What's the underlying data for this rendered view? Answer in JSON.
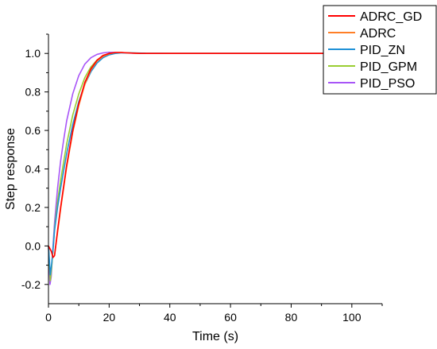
{
  "chart_data": {
    "type": "line",
    "title": "",
    "xlabel": "Time (s)",
    "ylabel": "Step response",
    "xlim": [
      0,
      110
    ],
    "ylim": [
      -0.3,
      1.1
    ],
    "xticks": [
      0,
      20,
      40,
      60,
      80,
      100
    ],
    "xtick_labels": [
      "0",
      "20",
      "40",
      "60",
      "80",
      "100"
    ],
    "yticks": [
      -0.2,
      0.0,
      0.2,
      0.4,
      0.6,
      0.8,
      1.0
    ],
    "ytick_labels": [
      "-0.2",
      "0.0",
      "0.2",
      "0.4",
      "0.6",
      "0.8",
      "1.0"
    ],
    "grid": false,
    "legend_position": "top-right",
    "series": [
      {
        "name": "ADRC_GD",
        "color": "#ff0000",
        "x": [
          0,
          1,
          1.5,
          2,
          3,
          4,
          6,
          8,
          10,
          12,
          14,
          16,
          18,
          20,
          22,
          24,
          26,
          30,
          40,
          60,
          80,
          100,
          110
        ],
        "y": [
          0,
          -0.03,
          -0.06,
          -0.05,
          0.08,
          0.2,
          0.42,
          0.6,
          0.74,
          0.85,
          0.92,
          0.965,
          0.99,
          1.0,
          1.005,
          1.005,
          1.003,
          1.0,
          1.0,
          1.0,
          1.0,
          1.0,
          1.0
        ]
      },
      {
        "name": "ADRC",
        "color": "#ff7f27",
        "x": [
          0,
          1,
          1.5,
          2,
          3,
          4,
          6,
          8,
          10,
          12,
          14,
          16,
          18,
          20,
          22,
          24,
          26,
          30,
          40,
          60,
          80,
          100,
          110
        ],
        "y": [
          0,
          -0.03,
          -0.06,
          -0.05,
          0.07,
          0.19,
          0.41,
          0.59,
          0.73,
          0.84,
          0.915,
          0.96,
          0.985,
          0.998,
          1.004,
          1.005,
          1.003,
          1.0,
          1.0,
          1.0,
          1.0,
          1.0,
          1.0
        ]
      },
      {
        "name": "PID_ZN",
        "color": "#1e90d6",
        "x": [
          0,
          0.6,
          1,
          1.5,
          2,
          3,
          4,
          6,
          8,
          10,
          12,
          14,
          16,
          18,
          20,
          22,
          24,
          28,
          32,
          40,
          60,
          80,
          100,
          110
        ],
        "y": [
          0,
          -0.15,
          -0.1,
          -0.02,
          0.08,
          0.2,
          0.3,
          0.48,
          0.63,
          0.75,
          0.84,
          0.905,
          0.95,
          0.978,
          0.993,
          1.0,
          1.003,
          1.003,
          1.001,
          1.0,
          1.0,
          1.0,
          1.0,
          1.0
        ]
      },
      {
        "name": "PID_GPM",
        "color": "#9acd32",
        "x": [
          0,
          0.6,
          1,
          1.5,
          2,
          3,
          4,
          6,
          8,
          10,
          12,
          14,
          16,
          18,
          20,
          22,
          24,
          28,
          32,
          40,
          60,
          80,
          100,
          110
        ],
        "y": [
          0,
          -0.18,
          -0.12,
          -0.02,
          0.09,
          0.23,
          0.34,
          0.53,
          0.68,
          0.79,
          0.875,
          0.93,
          0.965,
          0.988,
          1.0,
          1.004,
          1.004,
          1.002,
          1.0,
          1.0,
          1.0,
          1.0,
          1.0,
          1.0
        ]
      },
      {
        "name": "PID_PSO",
        "color": "#a855f7",
        "x": [
          0,
          0.5,
          0.9,
          1.3,
          2,
          3,
          4,
          5,
          6,
          8,
          10,
          12,
          14,
          16,
          18,
          20,
          22,
          26,
          30,
          40,
          60,
          80,
          100,
          110
        ],
        "y": [
          0,
          -0.2,
          -0.16,
          -0.05,
          0.12,
          0.3,
          0.44,
          0.55,
          0.65,
          0.79,
          0.885,
          0.945,
          0.978,
          0.995,
          1.003,
          1.006,
          1.005,
          1.002,
          1.0,
          1.0,
          1.0,
          1.0,
          1.0,
          1.0
        ]
      }
    ]
  }
}
